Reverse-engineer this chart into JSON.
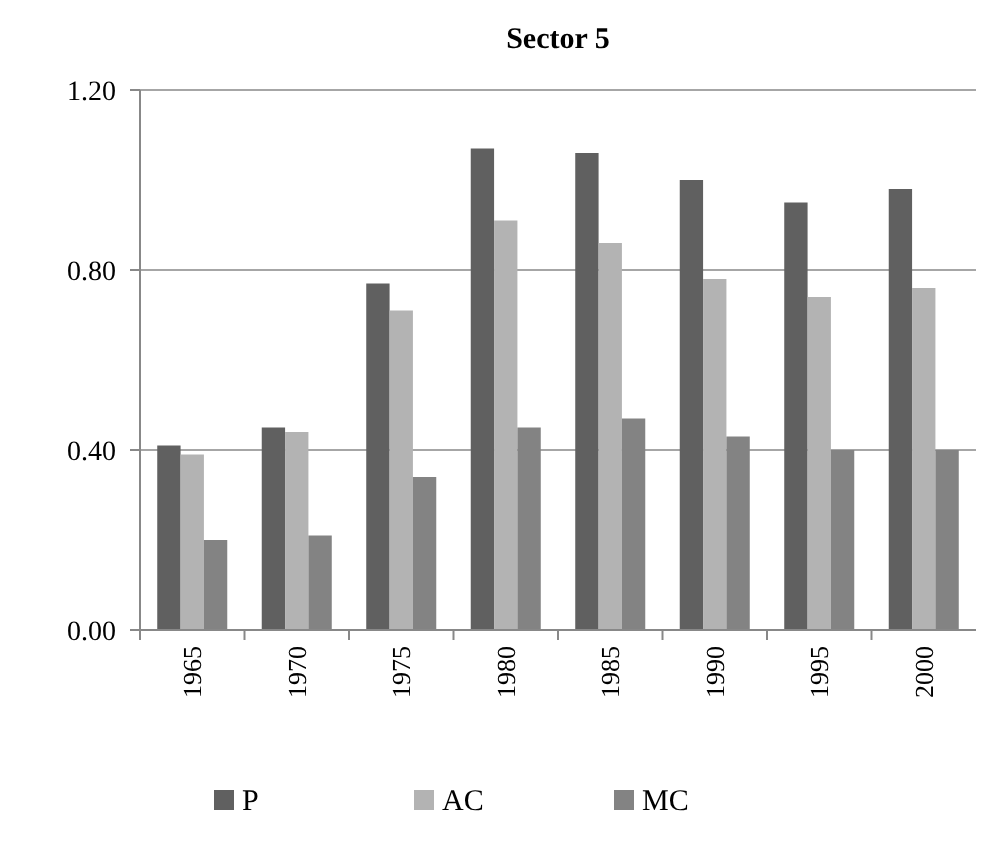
{
  "chart_data": {
    "type": "bar",
    "title": "Sector 5",
    "categories": [
      "1965",
      "1970",
      "1975",
      "1980",
      "1985",
      "1990",
      "1995",
      "2000"
    ],
    "series": [
      {
        "name": "P",
        "color": "#606060",
        "values": [
          0.41,
          0.45,
          0.77,
          1.07,
          1.06,
          1.0,
          0.95,
          0.98
        ]
      },
      {
        "name": "AC",
        "color": "#b3b3b3",
        "values": [
          0.39,
          0.44,
          0.71,
          0.91,
          0.86,
          0.78,
          0.74,
          0.76
        ]
      },
      {
        "name": "MC",
        "color": "#838383",
        "values": [
          0.2,
          0.21,
          0.34,
          0.45,
          0.47,
          0.43,
          0.4,
          0.4
        ]
      }
    ],
    "ylim": [
      0,
      1.2
    ],
    "yticks": [
      {
        "value": 0,
        "label": "0.00"
      },
      {
        "value": 0.4,
        "label": "0.40"
      },
      {
        "value": 0.8,
        "label": "0.80"
      },
      {
        "value": 1.2,
        "label": "1.20"
      }
    ],
    "grid": "y",
    "legend": "bottom"
  }
}
